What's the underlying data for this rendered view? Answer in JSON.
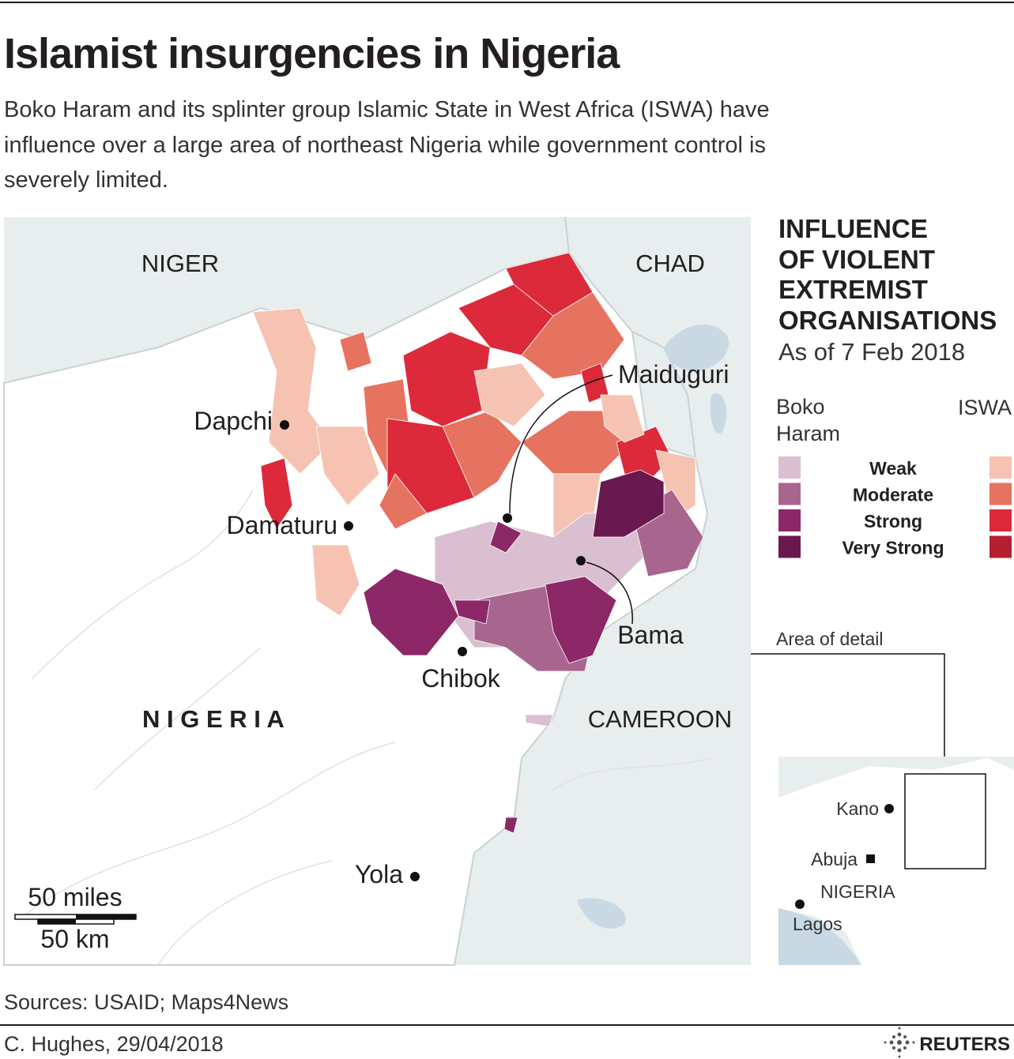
{
  "header": {
    "title": "Islamist insurgencies in Nigeria",
    "subtitle_lines": [
      "Boko Haram and its splinter group Islamic State in West Africa (ISWA) have",
      "influence over a large area of northeast Nigeria while government control is",
      "severely limited."
    ]
  },
  "map": {
    "countries": {
      "niger": "NIGER",
      "chad": "CHAD",
      "cameroon": "CAMEROON",
      "nigeria": "N I G E R I A"
    },
    "cities": [
      {
        "name": "Dapchi"
      },
      {
        "name": "Damaturu"
      },
      {
        "name": "Maiduguri"
      },
      {
        "name": "Bama"
      },
      {
        "name": "Chibok"
      },
      {
        "name": "Yola"
      }
    ],
    "scale": {
      "miles": "50 miles",
      "km": "50 km"
    }
  },
  "legend": {
    "title_lines": [
      "INFLUENCE",
      "OF VIOLENT",
      "EXTREMIST",
      "ORGANISATIONS"
    ],
    "subtitle": "As of 7 Feb 2018",
    "groups": {
      "boko_haram": "Boko Haram",
      "iswa": "ISWA"
    },
    "levels": [
      {
        "label": "Weak",
        "boko_haram_color": "#d9bfd0",
        "iswa_color": "#f6c3b2"
      },
      {
        "label": "Moderate",
        "boko_haram_color": "#a8668f",
        "iswa_color": "#e6735f"
      },
      {
        "label": "Strong",
        "boko_haram_color": "#8c2868",
        "iswa_color": "#dc2a3a"
      },
      {
        "label": "Very Strong",
        "boko_haram_color": "#6a1850",
        "iswa_color": "#b61f2e"
      }
    ]
  },
  "inset": {
    "label": "Area of detail",
    "country": "NIGERIA",
    "cities": [
      "Kano",
      "Abuja",
      "Lagos"
    ]
  },
  "footer": {
    "source": "Sources: USAID; Maps4News",
    "credit": "C. Hughes,  29/04/2018",
    "logo": "REUTERS"
  }
}
